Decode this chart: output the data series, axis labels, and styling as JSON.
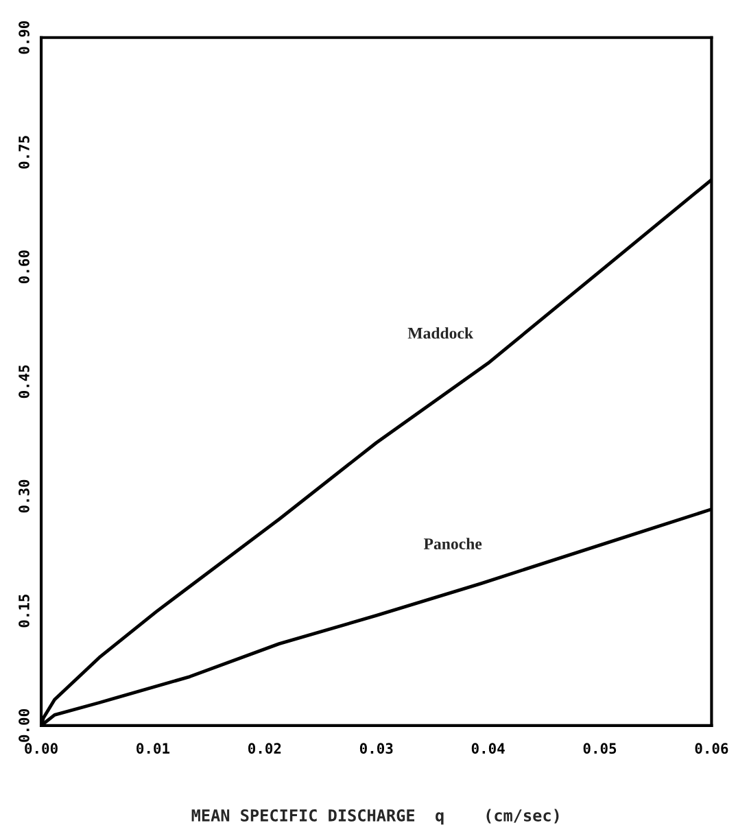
{
  "chart_data": {
    "type": "line",
    "xlabel": "MEAN SPECIFIC DISCHARGE  q    (cm/sec)",
    "series": [
      {
        "name": "Maddock",
        "color": "#000000",
        "x": [
          0,
          0.0002,
          0.0012,
          0.0052,
          0.0103,
          0.0213,
          0.03,
          0.04,
          0.05,
          0.06
        ],
        "values": [
          0,
          0.01,
          0.034,
          0.089,
          0.149,
          0.27,
          0.37,
          0.474,
          0.594,
          0.714
        ]
      },
      {
        "name": "Panoche",
        "color": "#000000",
        "x": [
          0,
          0.0012,
          0.0052,
          0.0133,
          0.0213,
          0.03,
          0.0394,
          0.05,
          0.06
        ],
        "values": [
          0,
          0.014,
          0.03,
          0.064,
          0.107,
          0.144,
          0.186,
          0.236,
          0.283
        ]
      }
    ],
    "xlim": [
      0,
      0.06
    ],
    "ylim": [
      0,
      0.9
    ],
    "xticks": [
      {
        "value": 0,
        "label": "0.00"
      },
      {
        "value": 0.01,
        "label": "0.01"
      },
      {
        "value": 0.02,
        "label": "0.02"
      },
      {
        "value": 0.03,
        "label": "0.03"
      },
      {
        "value": 0.04,
        "label": "0.04"
      },
      {
        "value": 0.05,
        "label": "0.05"
      },
      {
        "value": 0.06,
        "label": "0.06"
      }
    ],
    "yticks": [
      {
        "value": 0,
        "label": "0.00"
      },
      {
        "value": 0.15,
        "label": "0.15"
      },
      {
        "value": 0.3,
        "label": "0.30"
      },
      {
        "value": 0.45,
        "label": "0.45"
      },
      {
        "value": 0.6,
        "label": "0.60"
      },
      {
        "value": 0.75,
        "label": "0.75"
      },
      {
        "value": 0.9,
        "label": "0.90"
      }
    ],
    "grid": false,
    "legend": false
  }
}
